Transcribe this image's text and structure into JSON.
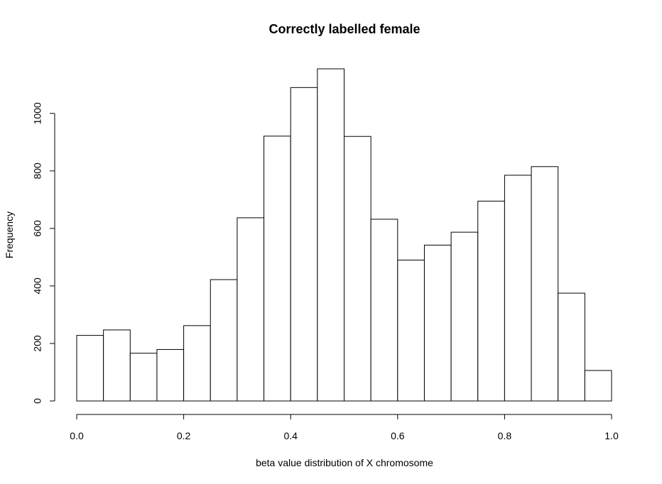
{
  "chart_data": {
    "type": "bar",
    "title": "Correctly labelled female",
    "xlabel": "beta value distribution of X chromosome",
    "ylabel": "Frequency",
    "bins": [
      [
        0.0,
        0.05
      ],
      [
        0.05,
        0.1
      ],
      [
        0.1,
        0.15
      ],
      [
        0.15,
        0.2
      ],
      [
        0.2,
        0.25
      ],
      [
        0.25,
        0.3
      ],
      [
        0.3,
        0.35
      ],
      [
        0.35,
        0.4
      ],
      [
        0.4,
        0.45
      ],
      [
        0.45,
        0.5
      ],
      [
        0.5,
        0.55
      ],
      [
        0.55,
        0.6
      ],
      [
        0.6,
        0.65
      ],
      [
        0.65,
        0.7
      ],
      [
        0.7,
        0.75
      ],
      [
        0.75,
        0.8
      ],
      [
        0.8,
        0.85
      ],
      [
        0.85,
        0.9
      ],
      [
        0.9,
        0.95
      ],
      [
        0.95,
        1.0
      ]
    ],
    "values": [
      228,
      247,
      166,
      179,
      262,
      422,
      637,
      921,
      1090,
      1155,
      920,
      632,
      490,
      542,
      587,
      695,
      785,
      815,
      375,
      106
    ],
    "xlim": [
      0.0,
      1.0
    ],
    "ylim": [
      0,
      1155
    ],
    "xticks": [
      0.0,
      0.2,
      0.4,
      0.6,
      0.8,
      1.0
    ],
    "xtick_labels": [
      "0.0",
      "0.2",
      "0.4",
      "0.6",
      "0.8",
      "1.0"
    ],
    "yticks": [
      0,
      200,
      400,
      600,
      800,
      1000
    ],
    "ytick_labels": [
      "0",
      "200",
      "400",
      "600",
      "800",
      "1000"
    ],
    "grid": false,
    "legend": "none",
    "bar_fill": "#ffffff",
    "bar_stroke": "#000000"
  }
}
